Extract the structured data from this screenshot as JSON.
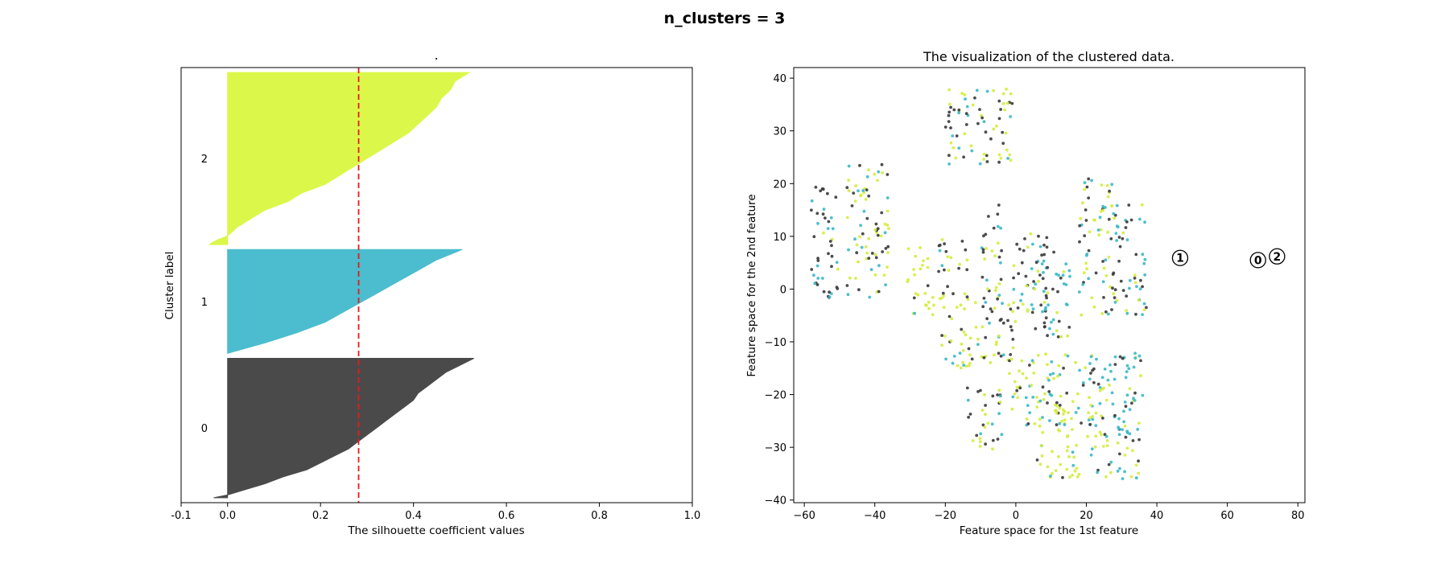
{
  "figure": {
    "suptitle": "n_clusters = 3"
  },
  "chart_data": [
    {
      "type": "area",
      "name": "silhouette-plot",
      "title": ".",
      "xlabel": "The silhouette coefficient values",
      "ylabel": "Cluster label",
      "xlim": [
        -0.1,
        1.0
      ],
      "xticks": [
        "-0.1",
        "0.0",
        "0.2",
        "0.4",
        "0.6",
        "0.8",
        "1.0"
      ],
      "average_silhouette_score": 0.282,
      "clusters": [
        {
          "label": "0",
          "color": "#4a4a4a",
          "size": 282,
          "min": -0.03,
          "max": 0.53,
          "sorted_profile": [
            [
              0.0,
              0.53
            ],
            [
              0.05,
              0.5
            ],
            [
              0.1,
              0.47
            ],
            [
              0.15,
              0.45
            ],
            [
              0.2,
              0.43
            ],
            [
              0.25,
              0.41
            ],
            [
              0.3,
              0.4
            ],
            [
              0.35,
              0.38
            ],
            [
              0.4,
              0.36
            ],
            [
              0.45,
              0.34
            ],
            [
              0.5,
              0.32
            ],
            [
              0.55,
              0.3
            ],
            [
              0.6,
              0.28
            ],
            [
              0.65,
              0.26
            ],
            [
              0.7,
              0.23
            ],
            [
              0.75,
              0.2
            ],
            [
              0.8,
              0.17
            ],
            [
              0.85,
              0.12
            ],
            [
              0.9,
              0.08
            ],
            [
              0.95,
              0.03
            ],
            [
              0.98,
              0.0
            ],
            [
              1.0,
              -0.03
            ]
          ]
        },
        {
          "label": "1",
          "color": "#4bbdce",
          "size": 210,
          "min": 0.0,
          "max": 0.505,
          "sorted_profile": [
            [
              0.0,
              0.505
            ],
            [
              0.1,
              0.45
            ],
            [
              0.2,
              0.41
            ],
            [
              0.3,
              0.37
            ],
            [
              0.4,
              0.33
            ],
            [
              0.5,
              0.29
            ],
            [
              0.6,
              0.25
            ],
            [
              0.7,
              0.21
            ],
            [
              0.8,
              0.15
            ],
            [
              0.9,
              0.08
            ],
            [
              1.0,
              0.0
            ]
          ]
        },
        {
          "label": "2",
          "color": "#dbf84a",
          "size": 348,
          "min": -0.04,
          "max": 0.52,
          "sorted_profile": [
            [
              0.0,
              0.52
            ],
            [
              0.05,
              0.49
            ],
            [
              0.1,
              0.48
            ],
            [
              0.15,
              0.46
            ],
            [
              0.2,
              0.45
            ],
            [
              0.25,
              0.43
            ],
            [
              0.3,
              0.41
            ],
            [
              0.35,
              0.39
            ],
            [
              0.4,
              0.36
            ],
            [
              0.45,
              0.33
            ],
            [
              0.5,
              0.3
            ],
            [
              0.55,
              0.27
            ],
            [
              0.6,
              0.24
            ],
            [
              0.65,
              0.21
            ],
            [
              0.7,
              0.16
            ],
            [
              0.75,
              0.13
            ],
            [
              0.8,
              0.08
            ],
            [
              0.85,
              0.05
            ],
            [
              0.9,
              0.02
            ],
            [
              0.95,
              0.0
            ],
            [
              0.97,
              -0.02
            ],
            [
              1.0,
              -0.04
            ]
          ]
        }
      ]
    },
    {
      "type": "scatter",
      "name": "cluster-scatter",
      "title": "The visualization of the clustered data.",
      "xlabel": "Feature space for the 1st feature",
      "ylabel": "Feature space for the 2nd feature",
      "xlim": [
        -63,
        82
      ],
      "ylim": [
        -40.5,
        42
      ],
      "xticks": [
        "−60",
        "−40",
        "−20",
        "0",
        "20",
        "40",
        "60",
        "80"
      ],
      "yticks": [
        "−40",
        "−30",
        "−20",
        "−10",
        "0",
        "10",
        "20",
        "30",
        "40"
      ],
      "xtick_values": [
        -60,
        -40,
        -20,
        0,
        20,
        40,
        60,
        80
      ],
      "ytick_values": [
        -40,
        -30,
        -20,
        -10,
        0,
        10,
        20,
        30,
        40
      ],
      "cluster_colors": {
        "0": "#3a3a3a",
        "1": "#3ab8c8",
        "2": "#d5ec3c"
      },
      "centers": [
        {
          "label": "0",
          "x": 68.7,
          "y": 5.5
        },
        {
          "label": "1",
          "x": 46.6,
          "y": 5.9
        },
        {
          "label": "2",
          "x": 74.1,
          "y": 6.2
        }
      ],
      "blobs": [
        {
          "x": [
            -58,
            -50
          ],
          "y": [
            -2,
            20
          ],
          "weights": [
            0.55,
            0.3,
            0.15
          ]
        },
        {
          "x": [
            -48,
            -36
          ],
          "y": [
            -2,
            24
          ],
          "weights": [
            0.35,
            0.2,
            0.45
          ]
        },
        {
          "x": [
            -22,
            -13
          ],
          "y": [
            -2,
            10
          ],
          "weights": [
            0.35,
            0.15,
            0.5
          ]
        },
        {
          "x": [
            -10,
            -4
          ],
          "y": [
            -5,
            16
          ],
          "weights": [
            0.35,
            0.25,
            0.4
          ]
        },
        {
          "x": [
            -22,
            0
          ],
          "y": [
            -15,
            -2
          ],
          "weights": [
            0.3,
            0.15,
            0.55
          ]
        },
        {
          "x": [
            -20,
            -1
          ],
          "y": [
            23,
            38
          ],
          "weights": [
            0.4,
            0.15,
            0.45
          ]
        },
        {
          "x": [
            -1,
            9
          ],
          "y": [
            -8,
            11
          ],
          "weights": [
            0.45,
            0.35,
            0.2
          ]
        },
        {
          "x": [
            7,
            16
          ],
          "y": [
            -10,
            9
          ],
          "weights": [
            0.25,
            0.55,
            0.2
          ]
        },
        {
          "x": [
            18,
            28
          ],
          "y": [
            -5,
            21
          ],
          "weights": [
            0.3,
            0.25,
            0.45
          ]
        },
        {
          "x": [
            27,
            37
          ],
          "y": [
            -5,
            16
          ],
          "weights": [
            0.45,
            0.35,
            0.2
          ]
        },
        {
          "x": [
            -2,
            24
          ],
          "y": [
            -26,
            -12
          ],
          "weights": [
            0.12,
            0.33,
            0.55
          ]
        },
        {
          "x": [
            20,
            36
          ],
          "y": [
            -28,
            -12
          ],
          "weights": [
            0.15,
            0.55,
            0.3
          ]
        },
        {
          "x": [
            6,
            18
          ],
          "y": [
            -36,
            -22
          ],
          "weights": [
            0.15,
            0.1,
            0.75
          ]
        },
        {
          "x": [
            -14,
            -4
          ],
          "y": [
            -31,
            -18
          ],
          "weights": [
            0.55,
            0.15,
            0.3
          ]
        },
        {
          "x": [
            21,
            35
          ],
          "y": [
            -36,
            -24
          ],
          "weights": [
            0.2,
            0.3,
            0.5
          ]
        },
        {
          "x": [
            -31,
            -23
          ],
          "y": [
            -5,
            8
          ],
          "weights": [
            0.1,
            0.1,
            0.8
          ]
        }
      ],
      "point_count": 840
    }
  ]
}
